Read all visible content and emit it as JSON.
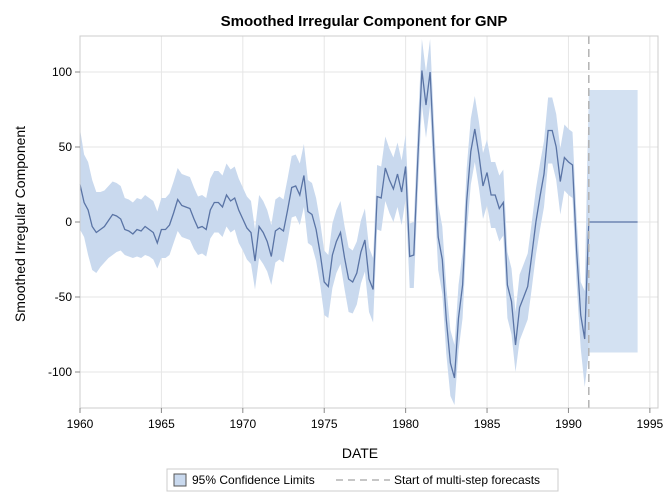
{
  "chart_data": {
    "type": "area",
    "title": "Smoothed Irregular Component for GNP",
    "xlabel": "DATE",
    "ylabel": "Smoothed Irregular Component",
    "xlim": [
      1960,
      1995.5
    ],
    "ylim": [
      -124,
      124
    ],
    "x_ticks": [
      "1960",
      "1965",
      "1970",
      "1975",
      "1980",
      "1985",
      "1990",
      "1995"
    ],
    "y_ticks": [
      "100",
      "50",
      "0",
      "-50",
      "-100"
    ],
    "grid": true,
    "forecast_start": 1991.25,
    "legend": {
      "position": "bottom",
      "items": [
        "95% Confidence Limits",
        "Start of multi-step forecasts"
      ]
    },
    "colors": {
      "line": "#5a74a5",
      "band": "#c9d9ee",
      "forecast_band": "#d3e1f2",
      "ref_line": "#b3b3b3",
      "grid": "#e6e6e6",
      "frame": "#cccccc"
    },
    "series": [
      {
        "x": [
          1960,
          1960.25,
          1960.5,
          1960.75,
          1961,
          1961.25,
          1961.5,
          1961.75,
          1962,
          1962.25,
          1962.5,
          1962.75,
          1963,
          1963.25,
          1963.5,
          1963.75,
          1964,
          1964.25,
          1964.5,
          1964.75,
          1965,
          1965.25,
          1965.5,
          1965.75,
          1966,
          1966.25,
          1966.5,
          1966.75,
          1967,
          1967.25,
          1967.5,
          1967.75,
          1968,
          1968.25,
          1968.5,
          1968.75,
          1969,
          1969.25,
          1969.5,
          1969.75,
          1970,
          1970.25,
          1970.5,
          1970.75,
          1971,
          1971.25,
          1971.5,
          1971.75,
          1972,
          1972.25,
          1972.5,
          1972.75,
          1973,
          1973.25,
          1973.5,
          1973.75,
          1974,
          1974.25,
          1974.5,
          1974.75,
          1975,
          1975.25,
          1975.5,
          1975.75,
          1976,
          1976.25,
          1976.5,
          1976.75,
          1977,
          1977.25,
          1977.5,
          1977.75,
          1978,
          1978.25,
          1978.5,
          1978.75,
          1979,
          1979.25,
          1979.5,
          1979.75,
          1980,
          1980.25,
          1980.5,
          1980.75,
          1981,
          1981.25,
          1981.5,
          1981.75,
          1982,
          1982.25,
          1982.5,
          1982.75,
          1983,
          1983.25,
          1983.5,
          1983.75,
          1984,
          1984.25,
          1984.5,
          1984.75,
          1985,
          1985.25,
          1985.5,
          1985.75,
          1986,
          1986.25,
          1986.5,
          1986.75,
          1987,
          1987.25,
          1987.5,
          1987.75,
          1988,
          1988.25,
          1988.5,
          1988.75,
          1989,
          1989.25,
          1989.5,
          1989.75,
          1990,
          1990.25,
          1990.5,
          1990.75,
          1991,
          1991.25
        ],
        "values": [
          25,
          13,
          8,
          -3,
          -7,
          -5,
          -3,
          1,
          5,
          4,
          2,
          -5,
          -6,
          -8,
          -5,
          -6,
          -3,
          -5,
          -7,
          -14,
          -5,
          -5,
          -2,
          6,
          15,
          11,
          10,
          9,
          2,
          -4,
          -3,
          -5,
          8,
          13,
          13,
          10,
          18,
          14,
          16,
          8,
          2,
          -4,
          -7,
          -26,
          -3,
          -7,
          -13,
          -23,
          -6,
          -4,
          -6,
          8,
          23,
          24,
          18,
          31,
          7,
          5,
          -5,
          -21,
          -40,
          -43,
          -22,
          -13,
          -7,
          -24,
          -38,
          -40,
          -34,
          -20,
          -12,
          -38,
          -45,
          17,
          16,
          36,
          28,
          22,
          32,
          20,
          37,
          -23,
          -22,
          42,
          101,
          78,
          100,
          43,
          -10,
          -25,
          -65,
          -94,
          -104,
          -64,
          -42,
          14,
          47,
          62,
          45,
          24,
          33,
          18,
          18,
          9,
          13,
          -42,
          -53,
          -82,
          -57,
          -50,
          -43,
          -22,
          0,
          17,
          32,
          61,
          61,
          50,
          27,
          43,
          40,
          38,
          -19,
          -62,
          -78,
          0
        ],
        "lower": [
          -5,
          -10,
          -22,
          -32,
          -34,
          -30,
          -27,
          -24,
          -22,
          -20,
          -19,
          -22,
          -23,
          -24,
          -23,
          -24,
          -22,
          -23,
          -25,
          -31,
          -24,
          -24,
          -22,
          -14,
          -6,
          -10,
          -11,
          -12,
          -18,
          -22,
          -21,
          -23,
          -11,
          -7,
          -7,
          -10,
          -3,
          -7,
          -5,
          -14,
          -19,
          -25,
          -28,
          -45,
          -24,
          -28,
          -33,
          -42,
          -27,
          -25,
          -27,
          -13,
          3,
          4,
          -2,
          10,
          -14,
          -16,
          -26,
          -42,
          -62,
          -64,
          -44,
          -34,
          -28,
          -45,
          -60,
          -61,
          -55,
          -41,
          -33,
          -60,
          -67,
          -5,
          -6,
          14,
          6,
          0,
          10,
          -2,
          15,
          -44,
          -44,
          20,
          78,
          56,
          78,
          21,
          -32,
          -48,
          -88,
          -116,
          -122,
          -86,
          -64,
          -8,
          25,
          40,
          23,
          2,
          11,
          -4,
          -4,
          -13,
          -9,
          -64,
          -75,
          -100,
          -79,
          -72,
          -65,
          -44,
          -22,
          -5,
          10,
          39,
          39,
          28,
          5,
          21,
          18,
          16,
          -41,
          -84,
          -110,
          -87
        ],
        "upper": [
          62,
          45,
          40,
          28,
          20,
          20,
          21,
          24,
          27,
          26,
          24,
          16,
          15,
          13,
          16,
          15,
          18,
          16,
          14,
          7,
          16,
          16,
          19,
          27,
          36,
          32,
          31,
          30,
          23,
          17,
          18,
          16,
          29,
          34,
          34,
          31,
          39,
          35,
          37,
          29,
          23,
          17,
          14,
          -5,
          18,
          14,
          8,
          -2,
          15,
          17,
          15,
          29,
          44,
          45,
          39,
          52,
          28,
          26,
          16,
          0,
          -19,
          -22,
          -1,
          8,
          14,
          -3,
          -17,
          -19,
          -13,
          1,
          9,
          -17,
          -24,
          38,
          37,
          57,
          49,
          43,
          53,
          41,
          58,
          -1,
          0,
          64,
          122,
          100,
          122,
          65,
          12,
          -3,
          -43,
          -72,
          -82,
          -42,
          -20,
          36,
          69,
          84,
          67,
          46,
          55,
          40,
          40,
          31,
          35,
          -20,
          -31,
          -60,
          -35,
          -28,
          -21,
          0,
          22,
          39,
          54,
          83,
          83,
          72,
          49,
          65,
          62,
          60,
          3,
          -40,
          -46,
          88
        ]
      },
      {
        "name": "forecast",
        "x": [
          1991.25,
          1991.5,
          1992,
          1992.5,
          1993,
          1993.5,
          1994,
          1994.25
        ],
        "values": [
          0,
          0,
          0,
          0,
          0,
          0,
          0,
          0
        ],
        "lower": [
          -87,
          -87,
          -87,
          -87,
          -87,
          -87,
          -87,
          -87
        ],
        "upper": [
          88,
          88,
          88,
          88,
          88,
          88,
          88,
          88
        ]
      }
    ]
  }
}
